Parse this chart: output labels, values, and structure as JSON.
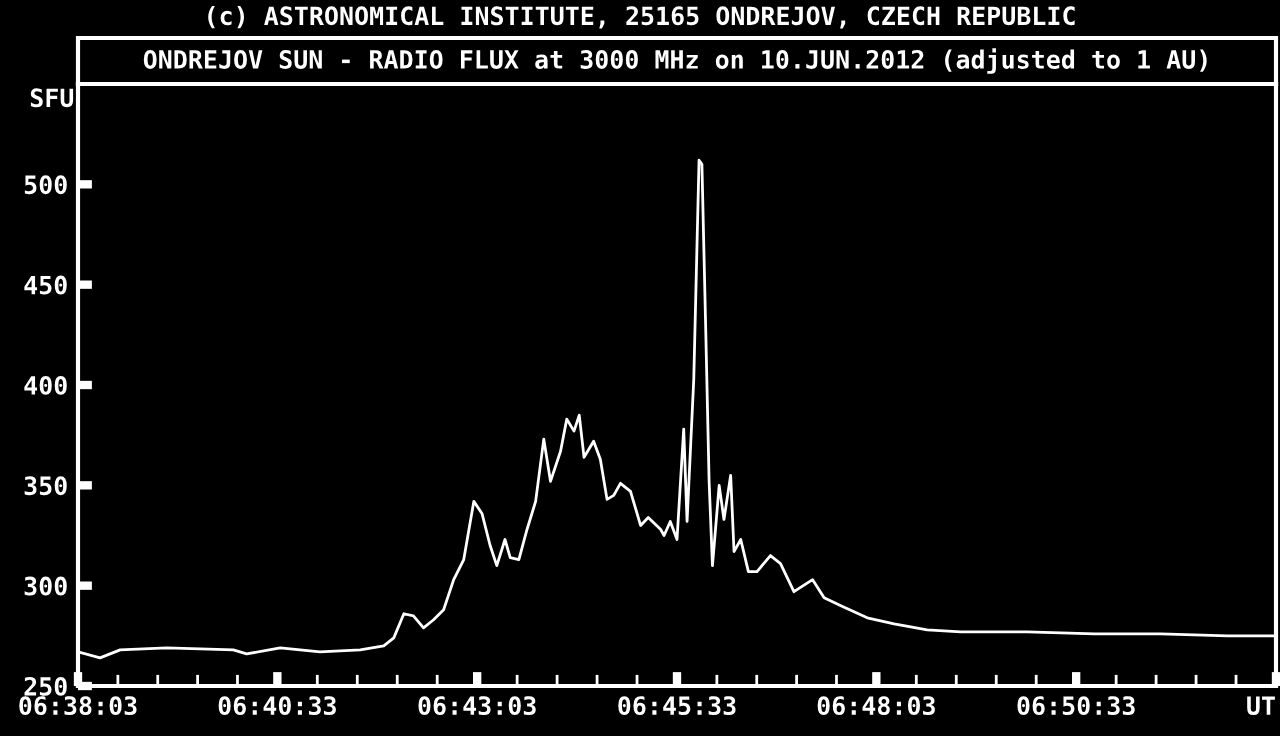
{
  "chart_data": {
    "type": "line",
    "title": "(c) ASTRONOMICAL INSTITUTE, 25165 ONDREJOV, CZECH REPUBLIC",
    "subtitle": "ONDREJOV SUN - RADIO FLUX at 3000 MHz on 10.JUN.2012 (adjusted to 1 AU)",
    "ylabel": "SFU",
    "x": [
      6.6342,
      6.6388,
      6.643,
      6.6527,
      6.6666,
      6.6694,
      6.6764,
      6.6847,
      6.6931,
      6.698,
      6.7001,
      6.7022,
      6.7042,
      6.7063,
      6.7084,
      6.7105,
      6.7126,
      6.7147,
      6.7168,
      6.7185,
      6.7202,
      6.7216,
      6.7233,
      6.7244,
      6.7262,
      6.7279,
      6.7297,
      6.7314,
      6.7328,
      6.7349,
      6.7362,
      6.7377,
      6.7388,
      6.7398,
      6.7418,
      6.7432,
      6.7446,
      6.746,
      6.7474,
      6.7495,
      6.7516,
      6.7532,
      6.7558,
      6.7565,
      6.7578,
      6.7592,
      6.7606,
      6.7613,
      6.7627,
      6.7638,
      6.7644,
      6.7652,
      6.7659,
      6.7666,
      6.768,
      6.769,
      6.7704,
      6.7711,
      6.7725,
      6.7741,
      6.7759,
      6.7787,
      6.7808,
      6.7836,
      6.7875,
      6.7899,
      6.7934,
      6.7989,
      6.8045,
      6.8114,
      6.8184,
      6.8323,
      6.8463,
      6.8601,
      6.8741,
      6.8838
    ],
    "series": [
      {
        "color": "#ffffff",
        "values": [
          267,
          264,
          268,
          269,
          268,
          266,
          269,
          267,
          268,
          270,
          274,
          286,
          285,
          279,
          283,
          288,
          303,
          313,
          342,
          336,
          320,
          310,
          323,
          314,
          313,
          328,
          342,
          373,
          352,
          367,
          383,
          377,
          385,
          364,
          372,
          363,
          343,
          345,
          351,
          347,
          330,
          334,
          328,
          325,
          332,
          323,
          378,
          332,
          403,
          512,
          510,
          427,
          352,
          310,
          350,
          333,
          355,
          317,
          323,
          307,
          307,
          315,
          311,
          297,
          303,
          294,
          290,
          284,
          281,
          278,
          277,
          277,
          276,
          276,
          275,
          275
        ]
      }
    ],
    "xlim": [
      6.6342,
      6.8842
    ],
    "xticks": [
      {
        "value": 6.6342,
        "label": "06:38:03"
      },
      {
        "value": 6.6758,
        "label": "06:40:33"
      },
      {
        "value": 6.7175,
        "label": "06:43:03"
      },
      {
        "value": 6.7592,
        "label": "06:45:33"
      },
      {
        "value": 6.8008,
        "label": "06:48:03"
      },
      {
        "value": 6.8425,
        "label": "06:50:33"
      },
      {
        "value": 6.8842,
        "label": "UT"
      }
    ],
    "ylim": [
      250,
      550
    ],
    "yticks": [
      250,
      300,
      350,
      400,
      450,
      500
    ],
    "grid": false,
    "legend": false,
    "marker": "none",
    "line_style": "solid"
  }
}
